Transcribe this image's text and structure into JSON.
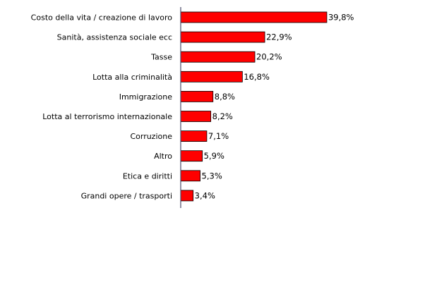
{
  "chart_data": {
    "type": "bar",
    "orientation": "horizontal",
    "categories": [
      "Costo della vita / creazione di lavoro",
      "Sanità, assistenza sociale ecc",
      "Tasse",
      "Lotta alla criminalità",
      "Immigrazione",
      "Lotta al terrorismo internazionale",
      "Corruzione",
      "Altro",
      "Etica e diritti",
      "Grandi opere / trasporti"
    ],
    "values": [
      39.8,
      22.9,
      20.2,
      16.8,
      8.8,
      8.2,
      7.1,
      5.9,
      5.3,
      3.4
    ],
    "value_labels": [
      "39,8%",
      "22,9%",
      "20,2%",
      "16,8%",
      "8,8%",
      "8,2%",
      "7,1%",
      "5,9%",
      "5,3%",
      "3,4%"
    ],
    "title": "",
    "xlabel": "",
    "ylabel": "",
    "xlim": [
      0,
      40
    ],
    "grid": false,
    "legend": "none",
    "colors": {
      "bar_fill": "#ff0000",
      "bar_stroke": "#000000",
      "axis": "#4a4a6a",
      "text": "#000000"
    }
  }
}
